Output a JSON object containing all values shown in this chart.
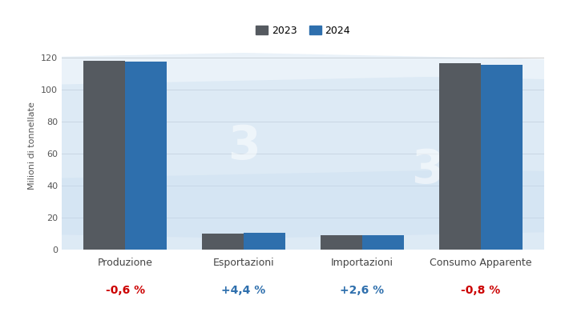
{
  "categories": [
    "Produzione",
    "Esportazioni",
    "Importazioni",
    "Consumo Apparente"
  ],
  "values_2023": [
    118.0,
    10.0,
    9.0,
    116.5
  ],
  "values_2024": [
    117.3,
    10.44,
    9.23,
    115.6
  ],
  "color_2023": "#555a60",
  "color_2024": "#2e6fad",
  "ylabel": "Milioni di tonnellate",
  "ylim": [
    0,
    130
  ],
  "yticks": [
    0,
    20,
    40,
    60,
    80,
    100,
    120
  ],
  "legend_labels": [
    "2023",
    "2024"
  ],
  "pct_labels": [
    "-0,6 %",
    "+4,4 %",
    "+2,6 %",
    "-0,8 %"
  ],
  "pct_colors": [
    "#cc0000",
    "#2e6fad",
    "#2e6fad",
    "#cc0000"
  ],
  "bar_width": 0.35,
  "bg_color": "#ffffff",
  "grid_color": "#cccccc",
  "watermark_color": "#c8ddf0"
}
